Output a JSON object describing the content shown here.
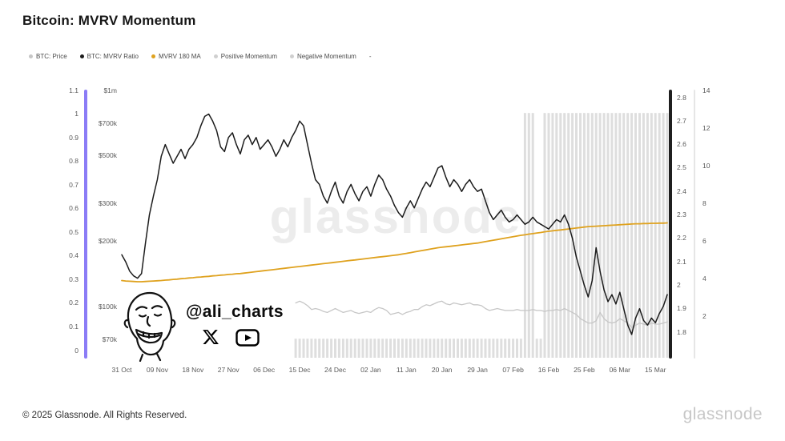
{
  "title": "Bitcoin: MVRV Momentum",
  "watermark": "glassnode",
  "attribution": {
    "handle": "@ali_charts"
  },
  "footer": {
    "copyright": "© 2025 Glassnode. All Rights Reserved.",
    "brand": "glassnode"
  },
  "legend": {
    "items": [
      {
        "label": "BTC: Price",
        "color": "#c6c6c6"
      },
      {
        "label": "BTC: MVRV Ratio",
        "color": "#1c1c1c"
      },
      {
        "label": "MVRV 180 MA",
        "color": "#dfa21f"
      },
      {
        "label": "Positive Momentum",
        "color": "#cfcfcf"
      },
      {
        "label": "Negative Momentum",
        "color": "#cfcfcf"
      },
      {
        "label": "-",
        "color": null
      }
    ]
  },
  "colors": {
    "price": "#c6c6c6",
    "mvrv": "#1c1c1c",
    "ma": "#dfa21f",
    "bars": "#dedede",
    "axis_left_bar": "#8b7cf6",
    "axis_mvrv_bar": "#1f1f1f",
    "axis_right_bar": "#e6e6e6"
  },
  "chart_data": {
    "type": "line",
    "title": "Bitcoin: MVRV Momentum",
    "days_total": 139,
    "x_tick_labels": [
      "31 Oct",
      "09 Nov",
      "18 Nov",
      "27 Nov",
      "06 Dec",
      "15 Dec",
      "24 Dec",
      "02 Jan",
      "11 Jan",
      "20 Jan",
      "29 Jan",
      "07 Feb",
      "16 Feb",
      "25 Feb",
      "06 Mar",
      "15 Mar"
    ],
    "x_tick_day_index": [
      0,
      9,
      18,
      27,
      36,
      45,
      54,
      63,
      72,
      81,
      90,
      99,
      108,
      117,
      126,
      135
    ],
    "axes": {
      "momentum_scale_left": {
        "range": [
          0,
          1.1
        ],
        "ticks": [
          "1.1",
          "1",
          "0.9",
          "0.8",
          "0.7",
          "0.6",
          "0.5",
          "0.4",
          "0.3",
          "0.2",
          "0.1",
          "0"
        ]
      },
      "price_usd_log": {
        "ticks": [
          "$1m",
          "$700k",
          "$500k",
          "$300k",
          "$200k",
          "$100k",
          "$70k"
        ],
        "tick_values_k": [
          1000,
          700,
          500,
          300,
          200,
          100,
          70
        ]
      },
      "mvrv_ratio": {
        "range": [
          1.8,
          2.8
        ],
        "ticks": [
          "2.8",
          "2.7",
          "2.6",
          "2.5",
          "2.4",
          "2.3",
          "2.2",
          "2.1",
          "2",
          "1.9",
          "1.8"
        ]
      },
      "momentum_scale_right": {
        "range": [
          0,
          14
        ],
        "ticks": [
          "14",
          "12",
          "10",
          "8",
          "6",
          "4",
          "2"
        ]
      }
    },
    "series": {
      "mvrv": {
        "name": "BTC: MVRV Ratio",
        "axis": "mvrv_ratio",
        "values": [
          2.13,
          2.1,
          2.06,
          2.04,
          2.03,
          2.05,
          2.18,
          2.3,
          2.38,
          2.45,
          2.55,
          2.6,
          2.56,
          2.52,
          2.55,
          2.58,
          2.54,
          2.58,
          2.6,
          2.63,
          2.68,
          2.72,
          2.73,
          2.7,
          2.66,
          2.59,
          2.57,
          2.63,
          2.65,
          2.6,
          2.56,
          2.62,
          2.64,
          2.6,
          2.63,
          2.58,
          2.6,
          2.62,
          2.59,
          2.55,
          2.58,
          2.62,
          2.59,
          2.63,
          2.66,
          2.7,
          2.68,
          2.6,
          2.52,
          2.45,
          2.43,
          2.38,
          2.35,
          2.4,
          2.44,
          2.38,
          2.35,
          2.4,
          2.43,
          2.39,
          2.36,
          2.4,
          2.42,
          2.38,
          2.43,
          2.47,
          2.45,
          2.41,
          2.38,
          2.34,
          2.31,
          2.29,
          2.33,
          2.36,
          2.33,
          2.37,
          2.41,
          2.44,
          2.42,
          2.46,
          2.5,
          2.51,
          2.46,
          2.42,
          2.45,
          2.43,
          2.4,
          2.43,
          2.45,
          2.42,
          2.4,
          2.41,
          2.36,
          2.31,
          2.28,
          2.3,
          2.32,
          2.29,
          2.27,
          2.28,
          2.3,
          2.28,
          2.26,
          2.27,
          2.29,
          2.27,
          2.26,
          2.25,
          2.24,
          2.26,
          2.28,
          2.27,
          2.3,
          2.26,
          2.2,
          2.12,
          2.06,
          2.0,
          1.95,
          2.02,
          2.16,
          2.06,
          1.98,
          1.93,
          1.96,
          1.92,
          1.97,
          1.9,
          1.83,
          1.79,
          1.86,
          1.9,
          1.85,
          1.83,
          1.86,
          1.84,
          1.88,
          1.91,
          1.96
        ]
      },
      "ma180": {
        "name": "MVRV 180 MA",
        "axis": "mvrv_ratio",
        "values": [
          2.02,
          2.018,
          2.017,
          2.016,
          2.015,
          2.015,
          2.016,
          2.017,
          2.018,
          2.019,
          2.02,
          2.022,
          2.023,
          2.025,
          2.026,
          2.028,
          2.029,
          2.031,
          2.032,
          2.034,
          2.035,
          2.037,
          2.038,
          2.04,
          2.041,
          2.043,
          2.044,
          2.046,
          2.047,
          2.049,
          2.05,
          2.052,
          2.054,
          2.056,
          2.058,
          2.06,
          2.062,
          2.064,
          2.066,
          2.068,
          2.07,
          2.072,
          2.074,
          2.076,
          2.078,
          2.08,
          2.082,
          2.084,
          2.086,
          2.088,
          2.09,
          2.092,
          2.094,
          2.096,
          2.098,
          2.1,
          2.102,
          2.104,
          2.106,
          2.108,
          2.11,
          2.112,
          2.114,
          2.116,
          2.118,
          2.12,
          2.122,
          2.124,
          2.126,
          2.128,
          2.13,
          2.133,
          2.136,
          2.139,
          2.142,
          2.145,
          2.148,
          2.151,
          2.154,
          2.157,
          2.16,
          2.162,
          2.164,
          2.166,
          2.168,
          2.17,
          2.172,
          2.174,
          2.176,
          2.178,
          2.18,
          2.183,
          2.186,
          2.189,
          2.192,
          2.195,
          2.198,
          2.201,
          2.204,
          2.207,
          2.21,
          2.213,
          2.215,
          2.218,
          2.22,
          2.223,
          2.225,
          2.228,
          2.23,
          2.232,
          2.234,
          2.236,
          2.238,
          2.24,
          2.242,
          2.244,
          2.246,
          2.248,
          2.25,
          2.251,
          2.252,
          2.253,
          2.254,
          2.255,
          2.256,
          2.257,
          2.258,
          2.259,
          2.26,
          2.261,
          2.262,
          2.262,
          2.263,
          2.263,
          2.264,
          2.264,
          2.265,
          2.265,
          2.266
        ]
      },
      "price": {
        "name": "BTC: Price",
        "axis": "price_usd_log",
        "unit": "$k",
        "start_index": 44,
        "values": [
          104,
          106,
          104,
          101,
          97,
          98,
          97,
          95,
          94,
          96,
          98,
          96,
          94,
          95,
          96,
          94,
          93,
          94,
          95,
          94,
          97,
          99,
          98,
          96,
          92,
          93,
          94,
          92,
          94,
          95,
          97,
          97,
          100,
          102,
          101,
          103,
          105,
          106,
          103,
          102,
          104,
          103,
          102,
          103,
          104,
          102,
          102,
          101,
          98,
          96,
          97,
          98,
          97,
          96,
          96,
          96,
          97,
          96,
          96,
          96,
          97,
          96,
          96,
          95,
          96,
          96,
          97,
          96,
          98,
          96,
          94,
          92,
          88,
          86,
          84,
          84,
          86,
          94,
          88,
          85,
          84,
          85,
          88,
          86,
          84,
          80,
          82,
          84,
          83,
          82,
          84,
          83,
          83,
          84,
          85
        ]
      },
      "momentum_bars": {
        "name": "Momentum",
        "axis": "momentum_scale_right",
        "segments": [
          {
            "from": 44,
            "to": 101,
            "value": 0.8
          },
          {
            "from": 102,
            "to": 104,
            "value": 12.8
          },
          {
            "from": 105,
            "to": 106,
            "value": 0.8
          },
          {
            "from": 107,
            "to": 138,
            "value": 12.8
          }
        ]
      }
    }
  }
}
